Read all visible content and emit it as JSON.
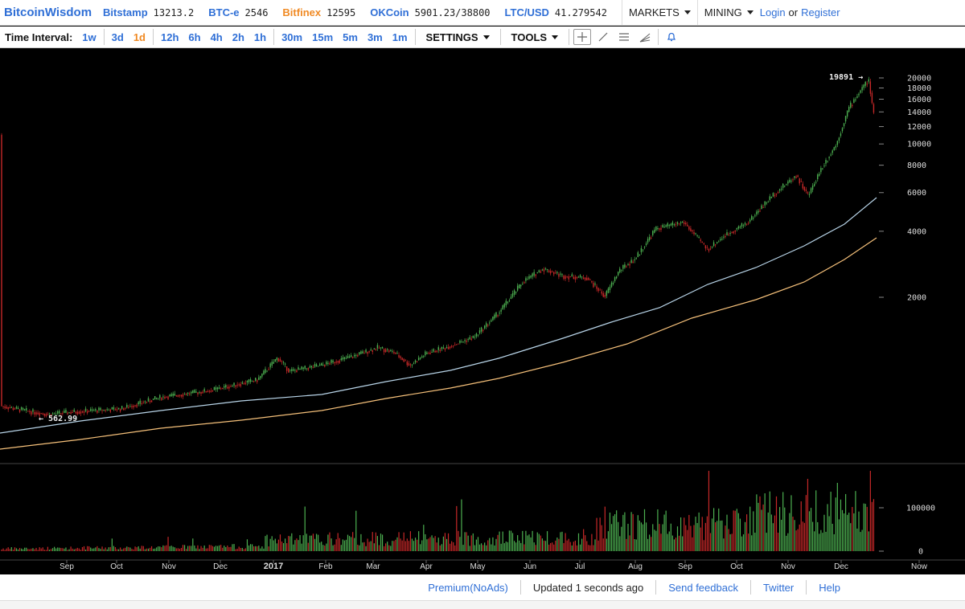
{
  "topbar": {
    "brand": "BitcoinWisdom",
    "markets": [
      {
        "name": "Bitstamp",
        "price": "13213.2",
        "color": "#2f6fd6"
      },
      {
        "name": "BTC-e",
        "price": "2546",
        "color": "#2f6fd6"
      },
      {
        "name": "Bitfinex",
        "price": "12595",
        "color": "#f08a24"
      },
      {
        "name": "OKCoin",
        "price": "5901.23/38800",
        "color": "#2f6fd6"
      },
      {
        "name": "LTC/USD",
        "price": "41.279542",
        "color": "#2f6fd6"
      }
    ],
    "markets_menu": "MARKETS",
    "mining_menu": "MINING",
    "login": "Login",
    "or": "or",
    "register": "Register"
  },
  "toolbar": {
    "time_interval_label": "Time Interval:",
    "intervals": [
      "1w",
      "3d",
      "1d",
      "12h",
      "6h",
      "4h",
      "2h",
      "1h",
      "30m",
      "15m",
      "5m",
      "3m",
      "1m"
    ],
    "active_interval": "1d",
    "settings": "SETTINGS",
    "tools": "TOOLS",
    "tool_icons": [
      "crosshair-icon",
      "trendline-icon",
      "horizontal-lines-icon",
      "fan-icon",
      "alert-bell-icon"
    ]
  },
  "chart_data": {
    "type": "candlestick",
    "price_axis_ticks": [
      "20000",
      "18000",
      "16000",
      "14000",
      "12000",
      "10000",
      "8000",
      "6000",
      "4000",
      "2000"
    ],
    "volume_axis_ticks": [
      "100000",
      "0"
    ],
    "time_axis_labels": [
      "Sep",
      "Oct",
      "Nov",
      "Dec",
      "2017",
      "Feb",
      "Mar",
      "Apr",
      "May",
      "Jun",
      "Jul",
      "Aug",
      "Sep",
      "Oct",
      "Nov",
      "Dec",
      "Now"
    ],
    "high_marker": "19891",
    "low_marker": "562.99",
    "scale": "log",
    "colors": {
      "up": "#4caf50",
      "down": "#c62828",
      "ema_fast": "#b8d4e8",
      "ema_slow": "#f5c07a",
      "grid": "#333333"
    }
  },
  "footer": {
    "premium": "Premium(NoAds)",
    "updated": "Updated 1 seconds ago",
    "feedback": "Send feedback",
    "twitter": "Twitter",
    "help": "Help"
  }
}
